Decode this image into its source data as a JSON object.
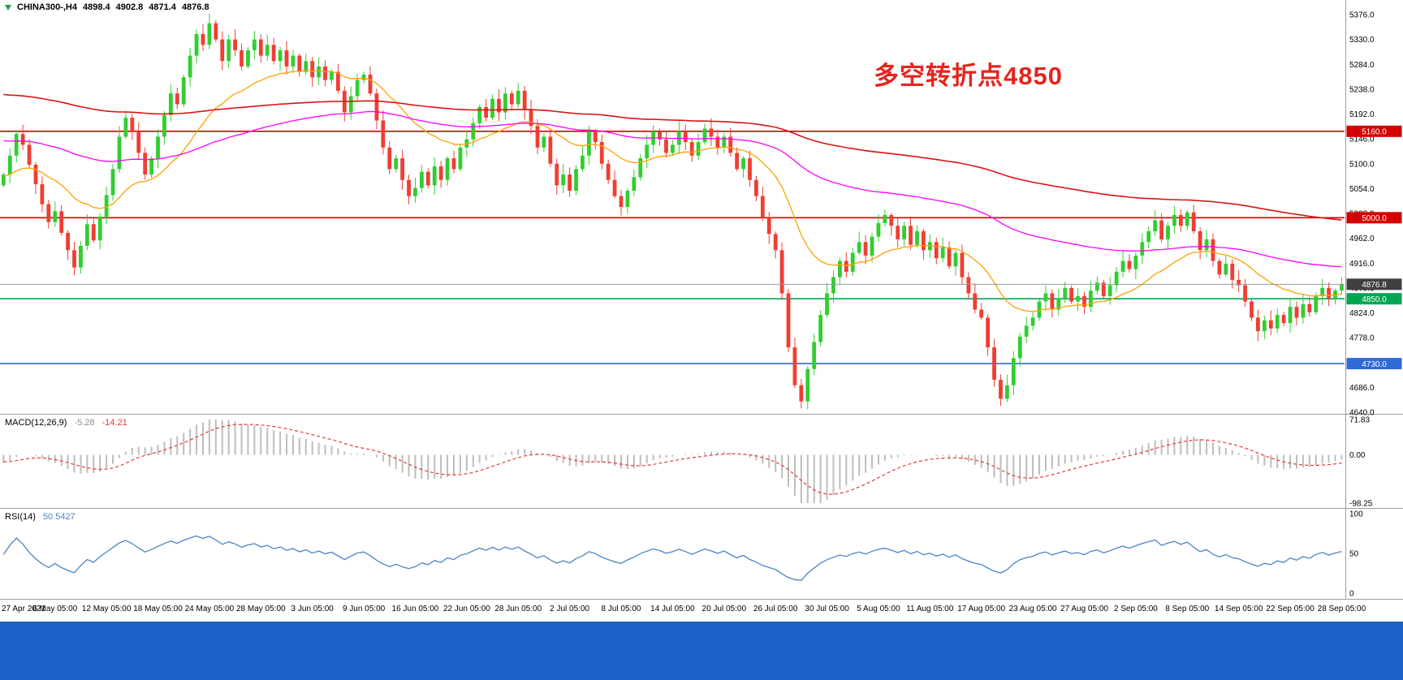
{
  "header": {
    "symbol": "CHINA300-,H4",
    "open": "4898.4",
    "high": "4902.8",
    "low": "4871.4",
    "close": "4876.8"
  },
  "annotation": {
    "text": "多空转折点4850",
    "color": "#E6241D"
  },
  "colors": {
    "background": "#FFFFFF",
    "footer_bar": "#1A60C6",
    "separator": "#9E9E9E",
    "axis_text": "#000000",
    "up_candle": "#32CD32",
    "down_candle": "#EF3E33",
    "current_price_bg": "#404040",
    "current_price_line": "#8F9AA6"
  },
  "chart_data": {
    "type": "candlestick",
    "symbol": "CHINA300-,H4",
    "timeframe": "H4",
    "title": "CHINA300- H4 candlestick chart with MACD(12,26,9) and RSI(14)",
    "x_labels": [
      "27 Apr 2021",
      "6 May 05:00",
      "12 May 05:00",
      "18 May 05:00",
      "24 May 05:00",
      "28 May 05:00",
      "3 Jun 05:00",
      "9 Jun 05:00",
      "16 Jun 05:00",
      "22 Jun 05:00",
      "28 Jun 05:00",
      "2 Jul 05:00",
      "8 Jul 05:00",
      "14 Jul 05:00",
      "20 Jul 05:00",
      "26 Jul 05:00",
      "30 Jul 05:00",
      "5 Aug 05:00",
      "11 Aug 05:00",
      "17 Aug 05:00",
      "23 Aug 05:00",
      "27 Aug 05:00",
      "2 Sep 05:00",
      "8 Sep 05:00",
      "14 Sep 05:00",
      "22 Sep 05:00",
      "28 Sep 05:00"
    ],
    "price_ticks": [
      "5376.0",
      "5330.0",
      "5284.0",
      "5238.0",
      "5192.0",
      "5146.0",
      "5100.0",
      "5054.0",
      "5008.0",
      "4962.0",
      "4916.0",
      "4870.0",
      "4824.0",
      "4778.0",
      "4732.0",
      "4686.0",
      "4640.0"
    ],
    "price_range": {
      "y_top_value": 5376,
      "y_bottom_value": 4640
    },
    "open_first": 5060,
    "closes": [
      5080,
      5115,
      5155,
      5135,
      5098,
      5062,
      5025,
      4992,
      5012,
      4972,
      4940,
      4908,
      4948,
      4988,
      4958,
      5002,
      5042,
      5090,
      5150,
      5185,
      5160,
      5120,
      5080,
      5110,
      5150,
      5190,
      5230,
      5210,
      5260,
      5300,
      5340,
      5320,
      5360,
      5330,
      5290,
      5330,
      5310,
      5280,
      5310,
      5330,
      5300,
      5320,
      5290,
      5310,
      5280,
      5300,
      5270,
      5290,
      5260,
      5280,
      5255,
      5270,
      5235,
      5195,
      5225,
      5255,
      5265,
      5230,
      5180,
      5130,
      5090,
      5110,
      5070,
      5040,
      5055,
      5085,
      5060,
      5095,
      5070,
      5110,
      5090,
      5130,
      5145,
      5175,
      5205,
      5185,
      5220,
      5195,
      5230,
      5210,
      5235,
      5200,
      5170,
      5130,
      5150,
      5100,
      5060,
      5080,
      5050,
      5090,
      5115,
      5160,
      5140,
      5100,
      5070,
      5040,
      5020,
      5050,
      5075,
      5110,
      5135,
      5160,
      5145,
      5120,
      5135,
      5160,
      5140,
      5115,
      5140,
      5165,
      5150,
      5130,
      5150,
      5120,
      5090,
      5110,
      5070,
      5040,
      5000,
      4970,
      4940,
      4860,
      4760,
      4690,
      4660,
      4720,
      4770,
      4820,
      4860,
      4890,
      4920,
      4900,
      4935,
      4955,
      4930,
      4965,
      4990,
      5005,
      4985,
      4960,
      4985,
      4950,
      4975,
      4940,
      4955,
      4925,
      4945,
      4910,
      4935,
      4890,
      4860,
      4830,
      4815,
      4760,
      4700,
      4665,
      4690,
      4740,
      4780,
      4800,
      4815,
      4845,
      4860,
      4830,
      4850,
      4870,
      4845,
      4855,
      4835,
      4865,
      4880,
      4855,
      4875,
      4900,
      4920,
      4905,
      4930,
      4955,
      4975,
      4995,
      4960,
      4985,
      5005,
      4985,
      5010,
      4975,
      4940,
      4960,
      4920,
      4895,
      4915,
      4885,
      4875,
      4845,
      4815,
      4790,
      4810,
      4795,
      4820,
      4805,
      4835,
      4815,
      4840,
      4825,
      4855,
      4870,
      4850,
      4865,
      4876.8
    ],
    "wick_overrides": [
      {
        "i": 32,
        "high": 5378
      },
      {
        "i": 124,
        "low": 4647
      },
      {
        "i": 155,
        "low": 4652
      }
    ],
    "hlines": [
      {
        "value": 5160,
        "label": "5160.0",
        "color": "#D40000"
      },
      {
        "value": 5000,
        "label": "5000.0",
        "color": "#D40000"
      },
      {
        "value": 4850,
        "label": "4850.0",
        "color": "#00A651"
      },
      {
        "value": 4730,
        "label": "4730.0",
        "color": "#2F6BD7"
      }
    ],
    "current_price": {
      "value": 4876.8,
      "label": "4876.8"
    },
    "moving_averages": [
      {
        "period": 21,
        "color": "#FFA000",
        "width": 1.3
      },
      {
        "period": 89,
        "color": "#FF00FF",
        "width": 1.3
      },
      {
        "period": 200,
        "color": "#DC1414",
        "width": 1.6
      }
    ],
    "macd": {
      "label": "MACD(12,26,9)",
      "value_main": "-5.28",
      "value_signal": "-14.21",
      "params": [
        12,
        26,
        9
      ],
      "axis_labels": [
        "71.83",
        "0.00",
        "-98.25"
      ],
      "axis_max": 71.83,
      "axis_min": -98.25,
      "hist_color": "#BDBDBD",
      "signal_color": "#E53935"
    },
    "rsi": {
      "label": "RSI(14)",
      "value": "50.5427",
      "period": 14,
      "axis_labels": [
        "100",
        "50",
        "0"
      ],
      "axis_max": 100,
      "axis_min": 0,
      "color": "#4D84C4"
    }
  }
}
